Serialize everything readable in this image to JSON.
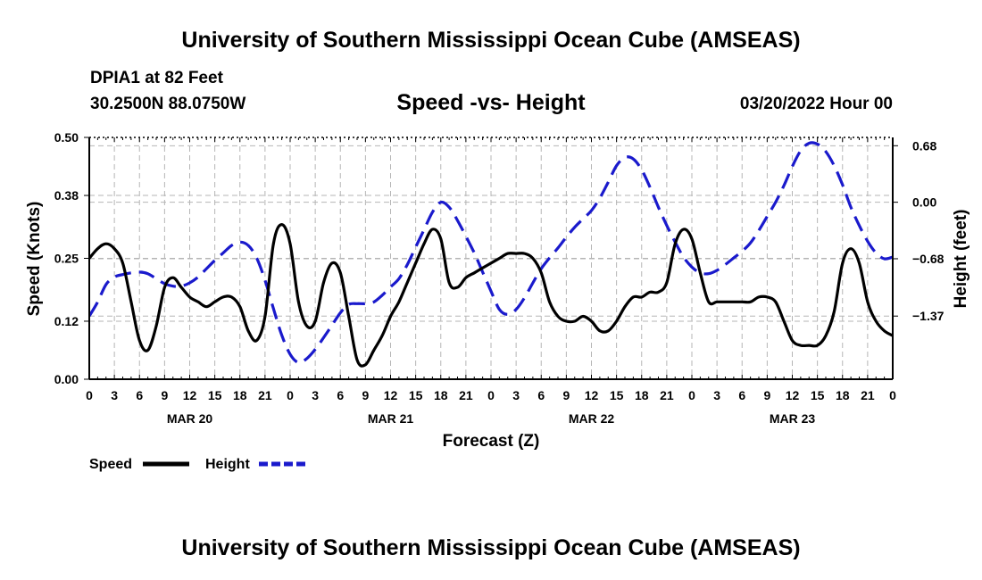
{
  "page": {
    "title": "University of Southern Mississippi Ocean Cube (AMSEAS)",
    "footer_title": "University of Southern Mississippi Ocean Cube (AMSEAS)",
    "station": "DPIA1 at 82 Feet",
    "coords": "30.2500N  88.0750W",
    "datetime": "03/20/2022 Hour 00"
  },
  "chart_data": {
    "type": "line",
    "title": "Speed -vs- Height",
    "xlabel": "Forecast (Z)",
    "ylabel": "Speed (Knots)",
    "y2label": "Height (feet)",
    "x_unit": "hours since 03/20/2022 00Z",
    "xlim": [
      0,
      96
    ],
    "ylim": [
      0,
      0.5
    ],
    "y2lim": [
      -2.13,
      0.78
    ],
    "x_ticks": [
      0,
      3,
      6,
      9,
      12,
      15,
      18,
      21,
      24,
      27,
      30,
      33,
      36,
      39,
      42,
      45,
      48,
      51,
      54,
      57,
      60,
      63,
      66,
      69,
      72,
      75,
      78,
      81,
      84,
      87,
      90,
      93,
      96
    ],
    "x_tick_labels": [
      "0",
      "3",
      "6",
      "9",
      "12",
      "15",
      "18",
      "21",
      "0",
      "3",
      "6",
      "9",
      "12",
      "15",
      "18",
      "21",
      "0",
      "3",
      "6",
      "9",
      "12",
      "15",
      "18",
      "21",
      "0",
      "3",
      "6",
      "9",
      "12",
      "15",
      "18",
      "21",
      "0"
    ],
    "day_labels": [
      {
        "x": 12,
        "label": "MAR 20"
      },
      {
        "x": 36,
        "label": "MAR 21"
      },
      {
        "x": 60,
        "label": "MAR 22"
      },
      {
        "x": 84,
        "label": "MAR 23"
      }
    ],
    "y_ticks": [
      0.0,
      0.12,
      0.25,
      0.38,
      0.5
    ],
    "y_tick_labels": [
      "0.00",
      "0.12",
      "0.25",
      "0.38",
      "0.50"
    ],
    "y2_ticks": [
      -1.37,
      -0.68,
      0.0,
      0.68
    ],
    "y2_tick_labels": [
      "−1.37",
      "−0.68",
      "0.00",
      "0.68"
    ],
    "grid": true,
    "legend": {
      "placement": "bottom-left",
      "speed_label": "Speed",
      "height_label": "Height"
    },
    "series": [
      {
        "name": "Speed",
        "axis": "left",
        "color": "#000000",
        "style": "solid",
        "x": [
          0,
          1,
          2,
          3,
          4,
          5,
          6,
          7,
          8,
          9,
          10,
          11,
          12,
          13,
          14,
          15,
          16,
          17,
          18,
          19,
          20,
          21,
          22,
          23,
          24,
          25,
          26,
          27,
          28,
          29,
          30,
          31,
          32,
          33,
          34,
          35,
          36,
          37,
          38,
          39,
          40,
          41,
          42,
          43,
          44,
          45,
          46,
          47,
          48,
          49,
          50,
          51,
          52,
          53,
          54,
          55,
          56,
          57,
          58,
          59,
          60,
          61,
          62,
          63,
          64,
          65,
          66,
          67,
          68,
          69,
          70,
          71,
          72,
          73,
          74,
          75,
          76,
          77,
          78,
          79,
          80,
          81,
          82,
          83,
          84,
          85,
          86,
          87,
          88,
          89,
          90,
          91,
          92,
          93,
          94,
          95,
          96
        ],
        "values": [
          0.25,
          0.27,
          0.28,
          0.27,
          0.24,
          0.16,
          0.08,
          0.06,
          0.11,
          0.19,
          0.21,
          0.19,
          0.17,
          0.16,
          0.15,
          0.16,
          0.17,
          0.17,
          0.15,
          0.1,
          0.08,
          0.13,
          0.28,
          0.32,
          0.28,
          0.16,
          0.11,
          0.12,
          0.2,
          0.24,
          0.22,
          0.13,
          0.04,
          0.03,
          0.06,
          0.09,
          0.13,
          0.16,
          0.2,
          0.24,
          0.28,
          0.31,
          0.29,
          0.2,
          0.19,
          0.21,
          0.22,
          0.23,
          0.24,
          0.25,
          0.26,
          0.26,
          0.26,
          0.25,
          0.22,
          0.16,
          0.13,
          0.12,
          0.12,
          0.13,
          0.12,
          0.1,
          0.1,
          0.12,
          0.15,
          0.17,
          0.17,
          0.18,
          0.18,
          0.2,
          0.28,
          0.31,
          0.29,
          0.22,
          0.16,
          0.16,
          0.16,
          0.16,
          0.16,
          0.16,
          0.17,
          0.17,
          0.16,
          0.12,
          0.08,
          0.07,
          0.07,
          0.07,
          0.09,
          0.14,
          0.24,
          0.27,
          0.24,
          0.16,
          0.12,
          0.1,
          0.09
        ]
      },
      {
        "name": "Height",
        "axis": "right",
        "color": "#1a1acc",
        "style": "dashed",
        "x": [
          0,
          1,
          2,
          3,
          4,
          5,
          6,
          7,
          8,
          9,
          10,
          11,
          12,
          13,
          14,
          15,
          16,
          17,
          18,
          19,
          20,
          21,
          22,
          23,
          24,
          25,
          26,
          27,
          28,
          29,
          30,
          31,
          32,
          33,
          34,
          35,
          36,
          37,
          38,
          39,
          40,
          41,
          42,
          43,
          44,
          45,
          46,
          47,
          48,
          49,
          50,
          51,
          52,
          53,
          54,
          55,
          56,
          57,
          58,
          59,
          60,
          61,
          62,
          63,
          64,
          65,
          66,
          67,
          68,
          69,
          70,
          71,
          72,
          73,
          74,
          75,
          76,
          77,
          78,
          79,
          80,
          81,
          82,
          83,
          84,
          85,
          86,
          87,
          88,
          89,
          90,
          91,
          92,
          93,
          94,
          95,
          96
        ],
        "values": [
          -1.37,
          -1.2,
          -0.99,
          -0.9,
          -0.87,
          -0.85,
          -0.84,
          -0.86,
          -0.92,
          -0.98,
          -1.01,
          -1.01,
          -0.97,
          -0.9,
          -0.8,
          -0.7,
          -0.61,
          -0.52,
          -0.48,
          -0.52,
          -0.67,
          -0.94,
          -1.28,
          -1.6,
          -1.83,
          -1.93,
          -1.88,
          -1.77,
          -1.63,
          -1.48,
          -1.33,
          -1.23,
          -1.22,
          -1.22,
          -1.2,
          -1.12,
          -1.02,
          -0.92,
          -0.75,
          -0.54,
          -0.33,
          -0.12,
          0.0,
          -0.06,
          -0.22,
          -0.41,
          -0.61,
          -0.84,
          -1.07,
          -1.29,
          -1.35,
          -1.29,
          -1.15,
          -0.97,
          -0.8,
          -0.67,
          -0.55,
          -0.42,
          -0.3,
          -0.2,
          -0.1,
          0.05,
          0.24,
          0.44,
          0.54,
          0.52,
          0.39,
          0.18,
          -0.06,
          -0.28,
          -0.48,
          -0.66,
          -0.78,
          -0.85,
          -0.86,
          -0.82,
          -0.75,
          -0.67,
          -0.59,
          -0.49,
          -0.34,
          -0.17,
          0.0,
          0.2,
          0.43,
          0.62,
          0.71,
          0.7,
          0.61,
          0.44,
          0.21,
          -0.06,
          -0.28,
          -0.47,
          -0.61,
          -0.68,
          -0.66
        ]
      }
    ]
  }
}
